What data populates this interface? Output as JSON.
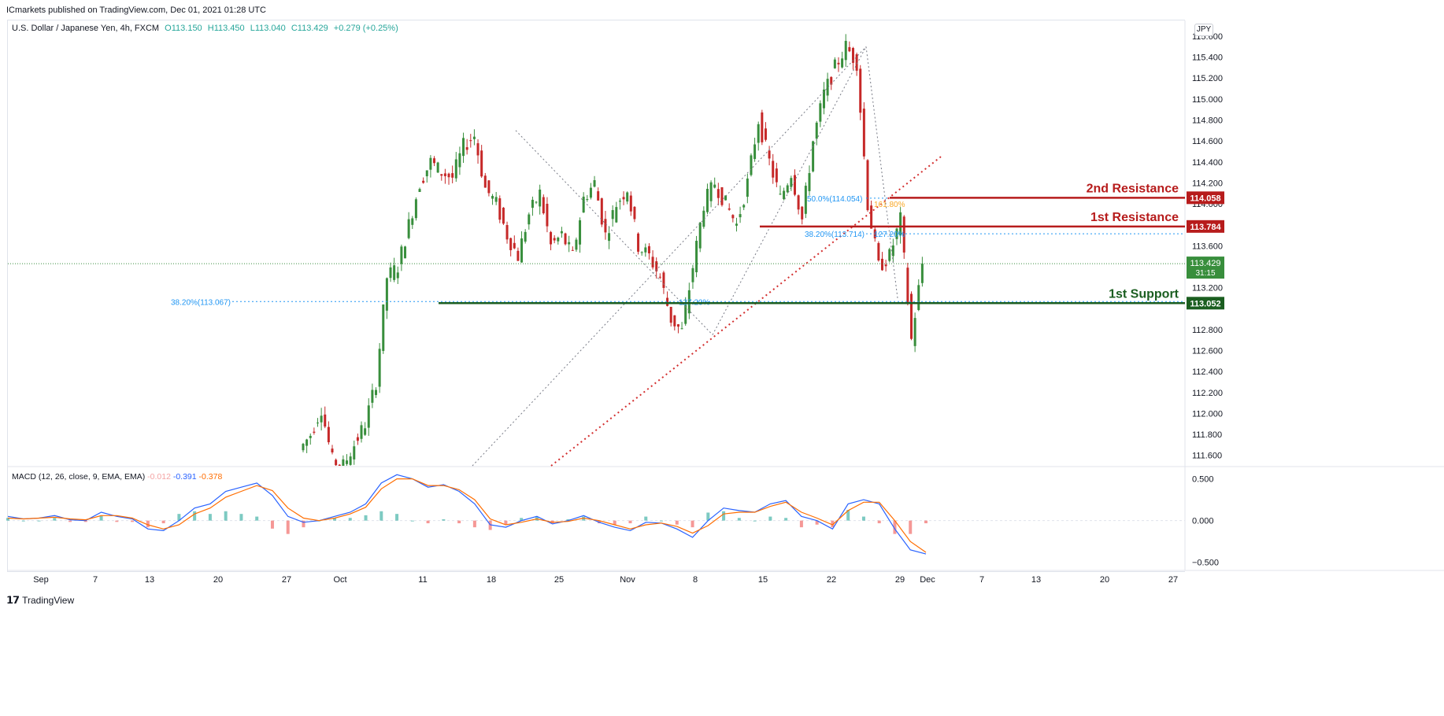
{
  "publisher": "ICmarkets published on TradingView.com, Dec 01, 2021 01:28 UTC",
  "symbol": {
    "title": "U.S. Dollar / Japanese Yen, 4h, FXCM",
    "open": "O113.150",
    "high": "H113.450",
    "low": "L113.040",
    "close": "C113.429",
    "change": "+0.279 (+0.25%)"
  },
  "currency_badge": "JPY",
  "footer_brand": "TradingView",
  "colors": {
    "up": "#388e3c",
    "down": "#c62828",
    "resistance": "#b71c1c",
    "support": "#1b5e20",
    "macd": "#2962ff",
    "signal": "#ff6d00",
    "fib": "#2196f3"
  },
  "chart_data": [
    {
      "type": "candlestick",
      "title": "U.S. Dollar / Japanese Yen, 4h, FXCM",
      "y_range": [
        111.5,
        115.75
      ],
      "y_ticks": [
        "115.600",
        "115.400",
        "115.200",
        "115.000",
        "114.800",
        "114.600",
        "114.400",
        "114.200",
        "114.000",
        "113.600",
        "113.200",
        "112.800",
        "112.600",
        "112.400",
        "112.200",
        "112.000",
        "111.800",
        "111.600"
      ],
      "x_ticks": [
        "Sep",
        "7",
        "13",
        "20",
        "27",
        "Oct",
        "11",
        "18",
        "25",
        "Nov",
        "8",
        "15",
        "22",
        "29",
        "Dec",
        "7",
        "13",
        "20",
        "27"
      ],
      "grid": false,
      "price_path": [
        {
          "t": "Sep 28",
          "p": 111.65
        },
        {
          "t": "Sep 29",
          "p": 111.8
        },
        {
          "t": "Sep 30",
          "p": 112.05
        },
        {
          "t": "Oct 1",
          "p": 111.55
        },
        {
          "t": "Oct 5",
          "p": 111.5
        },
        {
          "t": "Oct 6",
          "p": 111.7
        },
        {
          "t": "Oct 8",
          "p": 111.9
        },
        {
          "t": "Oct 10",
          "p": 112.3
        },
        {
          "t": "Oct 12",
          "p": 113.3
        },
        {
          "t": "Oct 13",
          "p": 113.4
        },
        {
          "t": "Oct 14",
          "p": 113.8
        },
        {
          "t": "Oct 16",
          "p": 114.2
        },
        {
          "t": "Oct 17",
          "p": 114.4
        },
        {
          "t": "Oct 18",
          "p": 114.3
        },
        {
          "t": "Oct 19",
          "p": 114.25
        },
        {
          "t": "Oct 20",
          "p": 114.55
        },
        {
          "t": "Oct 21",
          "p": 114.65
        },
        {
          "t": "Oct 22",
          "p": 114.15
        },
        {
          "t": "Oct 23",
          "p": 114.0
        },
        {
          "t": "Oct 24",
          "p": 113.7
        },
        {
          "t": "Oct 25",
          "p": 113.5
        },
        {
          "t": "Oct 26",
          "p": 113.9
        },
        {
          "t": "Oct 27",
          "p": 114.1
        },
        {
          "t": "Oct 28",
          "p": 113.6
        },
        {
          "t": "Oct 29",
          "p": 113.7
        },
        {
          "t": "Oct 30",
          "p": 113.5
        },
        {
          "t": "Nov 1",
          "p": 114.05
        },
        {
          "t": "Nov 2",
          "p": 114.2
        },
        {
          "t": "Nov 3",
          "p": 113.7
        },
        {
          "t": "Nov 4",
          "p": 114.0
        },
        {
          "t": "Nov 5",
          "p": 114.15
        },
        {
          "t": "Nov 6",
          "p": 113.6
        },
        {
          "t": "Nov 7",
          "p": 113.5
        },
        {
          "t": "Nov 8",
          "p": 113.3
        },
        {
          "t": "Nov 9",
          "p": 112.9
        },
        {
          "t": "Nov 10",
          "p": 112.78
        },
        {
          "t": "Nov 11",
          "p": 113.4
        },
        {
          "t": "Nov 12",
          "p": 114.0
        },
        {
          "t": "Nov 13",
          "p": 114.2
        },
        {
          "t": "Nov 14",
          "p": 114.0
        },
        {
          "t": "Nov 15",
          "p": 113.8
        },
        {
          "t": "Nov 16",
          "p": 114.2
        },
        {
          "t": "Nov 17",
          "p": 114.8
        },
        {
          "t": "Nov 18",
          "p": 114.4
        },
        {
          "t": "Nov 19",
          "p": 114.05
        },
        {
          "t": "Nov 20",
          "p": 114.3
        },
        {
          "t": "Nov 21",
          "p": 113.85
        },
        {
          "t": "Nov 22",
          "p": 114.6
        },
        {
          "t": "Nov 23",
          "p": 115.05
        },
        {
          "t": "Nov 24",
          "p": 115.3
        },
        {
          "t": "Nov 25",
          "p": 115.5
        },
        {
          "t": "Nov 26",
          "p": 115.35
        },
        {
          "t": "Nov 27",
          "p": 114.0
        },
        {
          "t": "Nov 28",
          "p": 113.4
        },
        {
          "t": "Nov 29",
          "p": 113.5
        },
        {
          "t": "Nov 30",
          "p": 113.85
        },
        {
          "t": "Nov 30 b",
          "p": 112.7
        },
        {
          "t": "Dec 1",
          "p": 113.43
        }
      ],
      "levels": [
        {
          "label": "2nd Resistance",
          "price": 114.058,
          "tag": "114.058"
        },
        {
          "label": "1st Resistance",
          "price": 113.784,
          "tag": "113.784"
        },
        {
          "label": "1st Support",
          "price": 113.052,
          "tag": "113.052"
        }
      ],
      "last_price": {
        "tag": "113.429",
        "countdown": "31:15"
      },
      "fib_labels": [
        {
          "text": "38.20%(113.067)",
          "price": 113.067
        },
        {
          "text": "38.20%(113.714)",
          "price": 113.714
        },
        {
          "text": "50.0%(114.054)",
          "price": 114.054
        },
        {
          "text": "127.20%",
          "price": 113.714
        },
        {
          "text": "127.20%",
          "price": 113.067
        },
        {
          "text": "161.80%",
          "price": 114.0
        }
      ]
    },
    {
      "type": "line",
      "title": "MACD (12, 26, close, 9, EMA, EMA)",
      "legend_values": [
        "-0.012",
        "-0.391",
        "-0.378"
      ],
      "y_range": [
        -0.55,
        0.6
      ],
      "y_ticks": [
        "0.500",
        "0.000",
        "−0.500"
      ],
      "series": [
        {
          "name": "MACD",
          "values": [
            0.05,
            0.02,
            0.03,
            0.06,
            0.01,
            0.0,
            0.1,
            0.05,
            0.02,
            -0.1,
            -0.12,
            0.0,
            0.15,
            0.2,
            0.35,
            0.4,
            0.45,
            0.3,
            0.05,
            -0.02,
            0.0,
            0.05,
            0.1,
            0.2,
            0.45,
            0.55,
            0.5,
            0.4,
            0.43,
            0.35,
            0.2,
            -0.05,
            -0.08,
            0.0,
            0.05,
            -0.04,
            0.0,
            0.06,
            -0.02,
            -0.08,
            -0.12,
            -0.02,
            -0.03,
            -0.1,
            -0.2,
            0.0,
            0.15,
            0.12,
            0.1,
            0.2,
            0.24,
            0.05,
            0.0,
            -0.1,
            0.2,
            0.25,
            0.2,
            -0.1,
            -0.35,
            -0.4
          ]
        },
        {
          "name": "Signal",
          "values": [
            0.03,
            0.02,
            0.03,
            0.04,
            0.02,
            0.01,
            0.06,
            0.06,
            0.03,
            -0.05,
            -0.1,
            -0.05,
            0.08,
            0.15,
            0.28,
            0.35,
            0.42,
            0.36,
            0.15,
            0.03,
            0.0,
            0.03,
            0.08,
            0.16,
            0.38,
            0.5,
            0.5,
            0.42,
            0.42,
            0.37,
            0.25,
            0.02,
            -0.05,
            -0.02,
            0.02,
            -0.02,
            -0.01,
            0.03,
            0.0,
            -0.05,
            -0.1,
            -0.05,
            -0.03,
            -0.07,
            -0.15,
            -0.06,
            0.08,
            0.1,
            0.1,
            0.17,
            0.22,
            0.1,
            0.03,
            -0.05,
            0.12,
            0.22,
            0.22,
            0.0,
            -0.25,
            -0.38
          ]
        }
      ]
    }
  ]
}
